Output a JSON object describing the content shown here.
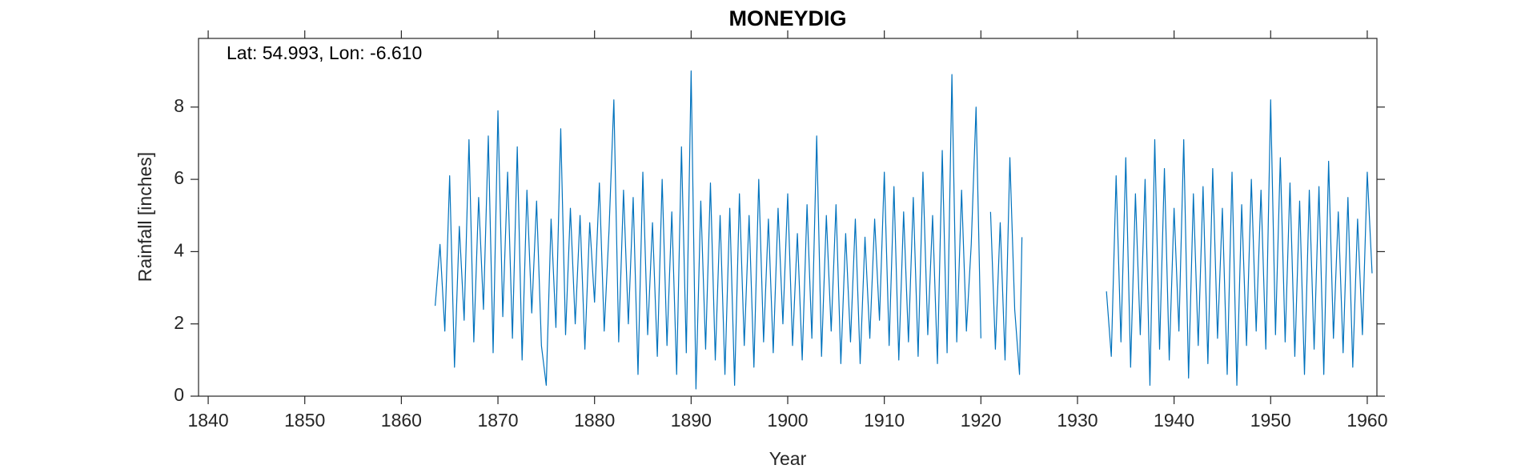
{
  "chart_data": {
    "type": "line",
    "title": "MONEYDIG",
    "annotation": "Lat: 54.993, Lon: -6.610",
    "x_label": "Year",
    "y_label": "Rainfall [inches]",
    "color": "#0072bd",
    "xlim": [
      1839,
      1961
    ],
    "ylim": [
      0,
      9.9
    ],
    "xticks": [
      1840,
      1850,
      1860,
      1870,
      1880,
      1890,
      1900,
      1910,
      1920,
      1930,
      1940,
      1950,
      1960
    ],
    "yticks": [
      0,
      2,
      4,
      6,
      8
    ],
    "x": [
      1863.5,
      1864,
      1864.5,
      1865,
      1865.5,
      1866,
      1866.5,
      1867,
      1867.5,
      1868,
      1868.5,
      1869,
      1869.5,
      1870,
      1870.5,
      1871,
      1871.5,
      1872,
      1872.5,
      1873,
      1873.5,
      1874,
      1874.5,
      1875,
      1875.5,
      1876,
      1876.5,
      1877,
      1877.5,
      1878,
      1878.5,
      1879,
      1879.5,
      1880,
      1880.5,
      1881,
      1881.5,
      1882,
      1882.5,
      1883,
      1883.5,
      1884,
      1884.5,
      1885,
      1885.5,
      1886,
      1886.5,
      1887,
      1887.5,
      1888,
      1888.5,
      1889,
      1889.5,
      1890,
      1890.5,
      1891,
      1891.5,
      1892,
      1892.5,
      1893,
      1893.5,
      1894,
      1894.5,
      1895,
      1895.5,
      1896,
      1896.5,
      1897,
      1897.5,
      1898,
      1898.5,
      1899,
      1899.5,
      1900,
      1900.5,
      1901,
      1901.5,
      1902,
      1902.5,
      1903,
      1903.5,
      1904,
      1904.5,
      1905,
      1905.5,
      1906,
      1906.5,
      1907,
      1907.5,
      1908,
      1908.5,
      1909,
      1909.5,
      1910,
      1910.5,
      1911,
      1911.5,
      1912,
      1912.5,
      1913,
      1913.5,
      1914,
      1914.5,
      1915,
      1915.5,
      1916,
      1916.5,
      1917,
      1917.5,
      1918,
      1918.5,
      1919,
      1919.5,
      1920,
      1920.5,
      1921,
      1921.5,
      1922,
      1922.5,
      1923,
      1923.5,
      1924,
      1924.25,
      1928,
      1933,
      1933.5,
      1934,
      1934.5,
      1935,
      1935.5,
      1936,
      1936.5,
      1937,
      1937.5,
      1938,
      1938.5,
      1939,
      1939.5,
      1940,
      1940.5,
      1941,
      1941.5,
      1942,
      1942.5,
      1943,
      1943.5,
      1944,
      1944.5,
      1945,
      1945.5,
      1946,
      1946.5,
      1947,
      1947.5,
      1948,
      1948.5,
      1949,
      1949.5,
      1950,
      1950.5,
      1951,
      1951.5,
      1952,
      1952.5,
      1953,
      1953.5,
      1954,
      1954.5,
      1955,
      1955.5,
      1956,
      1956.5,
      1957,
      1957.5,
      1958,
      1958.5,
      1959,
      1959.5,
      1960,
      1960.5
    ],
    "values": [
      2.5,
      4.2,
      1.8,
      6.1,
      0.8,
      4.7,
      2.1,
      7.1,
      1.5,
      5.5,
      2.4,
      7.2,
      1.2,
      7.9,
      2.2,
      6.2,
      1.6,
      6.9,
      1.0,
      5.7,
      2.3,
      5.4,
      1.4,
      0.3,
      4.9,
      1.9,
      7.4,
      1.7,
      5.2,
      2.0,
      5.0,
      1.3,
      4.8,
      2.6,
      5.9,
      1.8,
      4.6,
      8.2,
      1.5,
      5.7,
      2.0,
      5.5,
      0.6,
      6.2,
      1.7,
      4.8,
      1.1,
      6.0,
      1.4,
      5.1,
      0.6,
      6.9,
      1.2,
      9.0,
      0.2,
      5.4,
      1.3,
      5.9,
      1.0,
      5.0,
      0.6,
      5.2,
      0.3,
      5.6,
      1.4,
      5.0,
      0.8,
      6.0,
      1.5,
      4.9,
      1.2,
      5.2,
      2.0,
      5.6,
      1.4,
      4.5,
      1.0,
      5.3,
      1.6,
      7.2,
      1.1,
      5.0,
      1.8,
      5.3,
      0.9,
      4.5,
      1.5,
      4.9,
      0.9,
      4.4,
      1.6,
      4.9,
      2.1,
      6.2,
      1.4,
      5.8,
      1.0,
      5.1,
      1.5,
      5.5,
      1.1,
      6.2,
      1.7,
      5.0,
      0.9,
      6.8,
      1.2,
      8.9,
      1.5,
      5.7,
      1.8,
      4.2,
      8.0,
      1.6,
      null,
      5.1,
      1.3,
      4.8,
      1.0,
      6.6,
      2.4,
      0.6,
      4.4,
      null,
      2.9,
      1.1,
      6.1,
      1.5,
      6.6,
      0.8,
      5.6,
      1.7,
      6.0,
      0.3,
      7.1,
      1.3,
      6.3,
      1.0,
      5.2,
      1.8,
      7.1,
      0.5,
      5.6,
      1.4,
      5.8,
      0.9,
      6.3,
      1.6,
      5.2,
      0.6,
      6.2,
      0.3,
      5.3,
      1.4,
      6.0,
      1.8,
      5.7,
      1.3,
      8.2,
      1.7,
      6.6,
      1.5,
      5.9,
      1.1,
      5.4,
      0.6,
      5.7,
      1.3,
      5.8,
      0.6,
      6.5,
      1.6,
      5.1,
      1.2,
      5.5,
      0.8,
      4.9,
      1.7,
      6.2,
      3.4
    ]
  }
}
